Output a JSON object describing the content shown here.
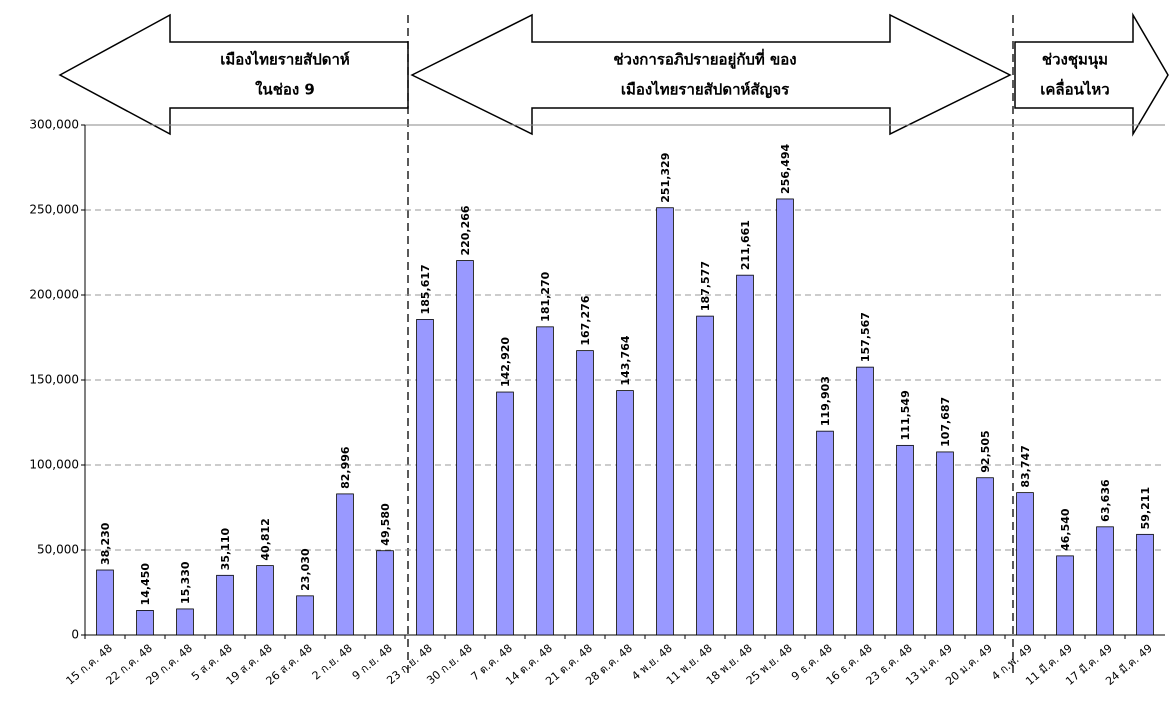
{
  "chart_data": {
    "type": "bar",
    "categories": [
      "15 ก.ค. 48",
      "22 ก.ค. 48",
      "29 ก.ค. 48",
      "5 ส.ค. 48",
      "19 ส.ค. 48",
      "26 ส.ค. 48",
      "2 ก.ย. 48",
      "9 ก.ย. 48",
      "23 ก.ย. 48",
      "30 ก.ย. 48",
      "7 ต.ค. 48",
      "14 ต.ค. 48",
      "21 ต.ค. 48",
      "28 ต.ค. 48",
      "4 พ.ย. 48",
      "11 พ.ย. 48",
      "18 พ.ย. 48",
      "25 พ.ย. 48",
      "9 ธ.ค. 48",
      "16 ธ.ค. 48",
      "23 ธ.ค. 48",
      "13 ม.ค. 49",
      "20 ม.ค. 49",
      "4 ก.พ. 49",
      "11 มี.ค. 49",
      "17 มี.ค. 49",
      "24 มี.ค. 49"
    ],
    "values": [
      38230,
      14450,
      15330,
      35110,
      40812,
      23030,
      82996,
      49580,
      185617,
      220266,
      142920,
      181270,
      167276,
      143764,
      251329,
      187577,
      211661,
      256494,
      119903,
      157567,
      111549,
      107687,
      92505,
      83747,
      46540,
      63636,
      59211
    ],
    "value_labels": [
      "38,230",
      "14,450",
      "15,330",
      "35,110",
      "40,812",
      "23,030",
      "82,996",
      "49,580",
      "185,617",
      "220,266",
      "142,920",
      "181,270",
      "167,276",
      "143,764",
      "251,329",
      "187,577",
      "211,661",
      "256,494",
      "119,903",
      "157,567",
      "111,549",
      "107,687",
      "92,505",
      "83,747",
      "46,540",
      "63,636",
      "59,211"
    ],
    "color": "#9999ff",
    "ylim": [
      0,
      300000
    ],
    "yticks": [
      0,
      {
        "value": 50000,
        "label": "50,000"
      },
      {
        "value": 100000,
        "label": "100,000"
      },
      {
        "value": 150000,
        "label": "150,000"
      },
      {
        "value": 200000,
        "label": "200,000"
      },
      {
        "value": 250000,
        "label": "250,000"
      },
      {
        "value": 300000,
        "label": "300,000"
      }
    ],
    "grid": true,
    "annotations": [
      {
        "lines": [
          "เมืองไทยรายสัปดาห์",
          "ในช่อง 9"
        ]
      },
      {
        "lines": [
          "ช่วงการอภิปรายอยู่กับที่ ของ",
          "เมืองไทยรายสัปดาห์สัญจร"
        ]
      },
      {
        "lines": [
          "ช่วงชุมนุม",
          "เคลื่อนไหว"
        ]
      }
    ]
  }
}
